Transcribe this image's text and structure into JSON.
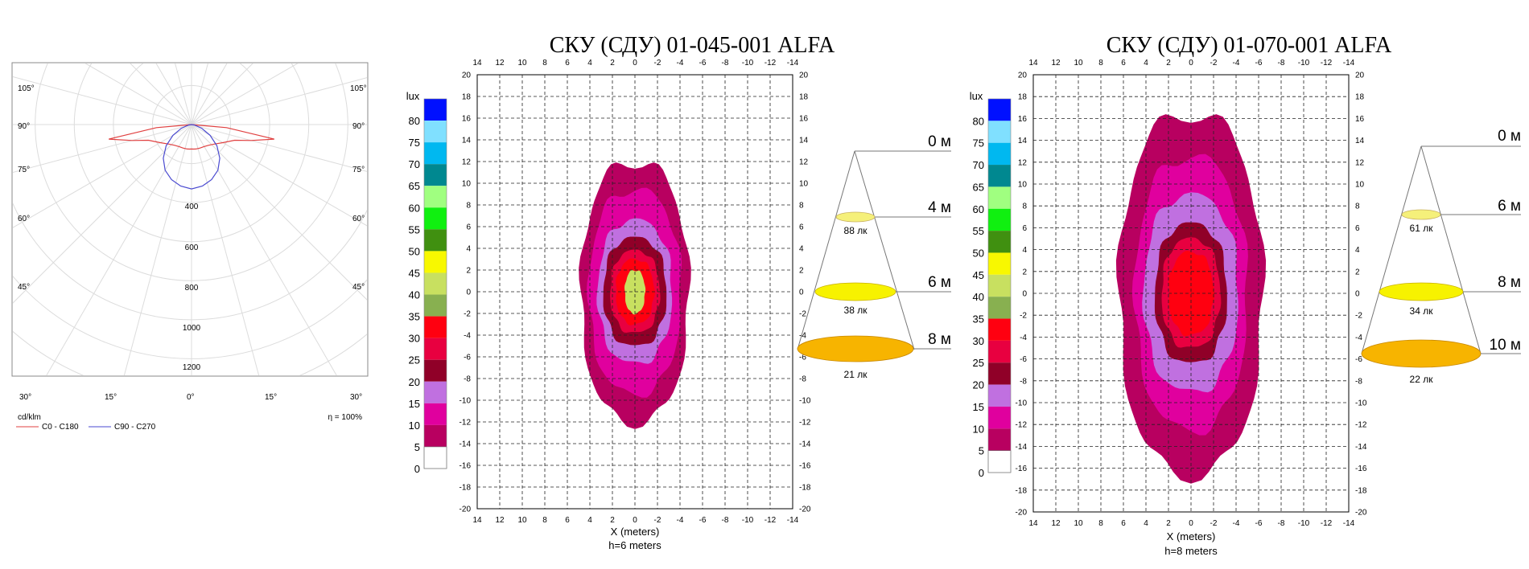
{
  "chart_data": [
    {
      "type": "polar",
      "unit_label": "cd/klm",
      "efficiency": "η = 100%",
      "angle_labels": [
        "105°",
        "90°",
        "75°",
        "60°",
        "45°",
        "30°",
        "15°",
        "0°",
        "15°",
        "30°"
      ],
      "radial_ticks": [
        "400",
        "600",
        "800",
        "1000",
        "1200"
      ],
      "series": [
        {
          "name": "C0 - C180",
          "color": "#e04040",
          "angles": [
            0,
            5,
            10,
            20,
            30,
            40,
            50,
            60,
            70,
            75,
            80,
            85,
            90
          ],
          "values": [
            125,
            126,
            127,
            128,
            130,
            138,
            155,
            185,
            235,
            315,
            430,
            180,
            0
          ]
        },
        {
          "name": "C90 - C270",
          "color": "#4a4ad0",
          "angles": [
            0,
            10,
            20,
            30,
            40,
            50,
            60,
            70,
            80,
            90
          ],
          "values": [
            330,
            320,
            300,
            270,
            225,
            170,
            110,
            55,
            15,
            0
          ]
        }
      ]
    },
    {
      "type": "heatmap",
      "title": "СКУ (СДУ) 01-045-001 ALFA",
      "xlabel": "X (meters)",
      "sublabel": "h=6 meters",
      "x_ticks": [
        "14",
        "12",
        "10",
        "8",
        "6",
        "4",
        "2",
        "0",
        "-2",
        "-4",
        "-6",
        "-8",
        "-10",
        "-12",
        "-14"
      ],
      "y_ticks": [
        "20",
        "18",
        "16",
        "14",
        "12",
        "10",
        "8",
        "6",
        "4",
        "2",
        "0",
        "-2",
        "-4",
        "-6",
        "-8",
        "-10",
        "-12",
        "-14",
        "-16",
        "-18",
        "-20"
      ],
      "xlim": [
        14,
        -14
      ],
      "ylim": [
        -20,
        20
      ],
      "legend_unit": "lux",
      "legend_levels": [
        "80",
        "75",
        "70",
        "65",
        "60",
        "55",
        "50",
        "45",
        "40",
        "35",
        "30",
        "25",
        "20",
        "15",
        "10",
        "5",
        "0"
      ],
      "contours": [
        {
          "lux": 5,
          "rx": 4.8,
          "ry": 12.0
        },
        {
          "lux": 10,
          "rx": 4.1,
          "ry": 9.4
        },
        {
          "lux": 15,
          "rx": 3.3,
          "ry": 6.6
        },
        {
          "lux": 20,
          "rx": 2.8,
          "ry": 5.0
        },
        {
          "lux": 25,
          "rx": 2.2,
          "ry": 3.8
        },
        {
          "lux": 30,
          "rx": 1.7,
          "ry": 3.0
        },
        {
          "lux": 40,
          "rx": 0.9,
          "ry": 2.0
        }
      ],
      "cone": [
        {
          "height": "0 м",
          "lux": ""
        },
        {
          "height": "4 м",
          "lux": "88 лк",
          "color": "#f5f07a"
        },
        {
          "height": "6 м",
          "lux": "38 лк",
          "color": "#f7f200"
        },
        {
          "height": "8 м",
          "lux": "21 лк",
          "color": "#f7b400"
        }
      ]
    },
    {
      "type": "heatmap",
      "title": "СКУ (СДУ) 01-070-001 ALFA",
      "xlabel": "X (meters)",
      "sublabel": "h=8 meters",
      "x_ticks": [
        "14",
        "12",
        "10",
        "8",
        "6",
        "4",
        "2",
        "0",
        "-2",
        "-4",
        "-6",
        "-8",
        "-10",
        "-12",
        "-14"
      ],
      "y_ticks": [
        "20",
        "18",
        "16",
        "14",
        "12",
        "10",
        "8",
        "6",
        "4",
        "2",
        "0",
        "-2",
        "-4",
        "-6",
        "-8",
        "-10",
        "-12",
        "-14",
        "-16",
        "-18",
        "-20"
      ],
      "xlim": [
        14,
        -14
      ],
      "ylim": [
        -20,
        20
      ],
      "legend_unit": "lux",
      "legend_levels": [
        "80",
        "75",
        "70",
        "65",
        "60",
        "55",
        "50",
        "45",
        "40",
        "35",
        "30",
        "25",
        "20",
        "15",
        "10",
        "5",
        "0"
      ],
      "contours": [
        {
          "lux": 5,
          "rx": 6.4,
          "ry": 16.5
        },
        {
          "lux": 10,
          "rx": 5.0,
          "ry": 12.5
        },
        {
          "lux": 15,
          "rx": 4.2,
          "ry": 9.0
        },
        {
          "lux": 20,
          "rx": 3.2,
          "ry": 6.4
        },
        {
          "lux": 25,
          "rx": 2.6,
          "ry": 5.0
        },
        {
          "lux": 30,
          "rx": 2.0,
          "ry": 3.8
        }
      ],
      "cone": [
        {
          "height": "0 м",
          "lux": ""
        },
        {
          "height": "6 м",
          "lux": "61 лк",
          "color": "#f5f07a"
        },
        {
          "height": "8 м",
          "lux": "34 лк",
          "color": "#f7f200"
        },
        {
          "height": "10 м",
          "lux": "22 лк",
          "color": "#f7b400"
        }
      ]
    }
  ],
  "colors": {
    "legend": [
      "#ffffff",
      "#b80060",
      "#e0009e",
      "#c070e0",
      "#900028",
      "#e80040",
      "#ff0010",
      "#88b050",
      "#c8e060",
      "#f8f800",
      "#409010",
      "#10f010",
      "#a0ff80",
      "#008890",
      "#00b8f0",
      "#80e0ff",
      "#0010ff"
    ]
  }
}
